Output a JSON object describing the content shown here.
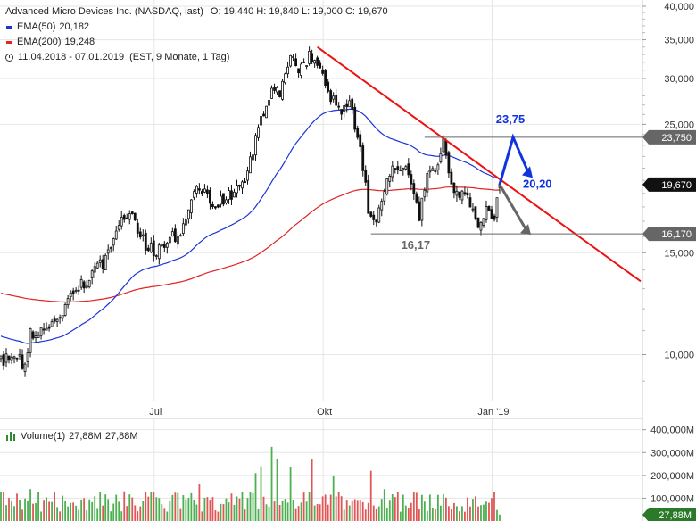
{
  "legend": {
    "name": "Advanced Micro Devices Inc. (NASDAQ, last)",
    "ohlc": "O: 19,440  H: 19,840  L: 19,000  C: 19,670",
    "ema50_label": "EMA(50)",
    "ema50_value": "20,182",
    "ema200_label": "EMA(200)",
    "ema200_value": "19,248",
    "range": "11.04.2018 - 07.01.2019",
    "range_meta": "(EST, 9 Monate, 1 Tag)",
    "volume_label": "Volume(1)",
    "volume_value1": "27,88M",
    "volume_value2": "27,88M"
  },
  "colors": {
    "ema50": "#1a36d6",
    "ema200": "#e02424",
    "trendline": "#ee1111",
    "up_candle": "#ffffff",
    "down_candle": "#111111",
    "volume_up": "#4caf50",
    "volume_down": "#e05555",
    "forecast_up": "#1133dd",
    "forecast_down": "#666666",
    "price_tag": "#111111",
    "level_tag": "#666666",
    "volume_tag": "#2a7a2a"
  },
  "chart_data": [
    {
      "type": "candlestick",
      "title": "Advanced Micro Devices Inc. (NASDAQ, last)",
      "y_scale": "log",
      "ylim": [
        8.3,
        41
      ],
      "y_ticks": [
        "40,000",
        "35,000",
        "30,000",
        "25,000",
        "15,000",
        "10,000"
      ],
      "y_tick_values": [
        40,
        35,
        30,
        25,
        15,
        10
      ],
      "x_ticks": [
        "Jul",
        "Okt",
        "Jan '19"
      ],
      "x_tick_dates": [
        "2018-07-02",
        "2018-10-01",
        "2019-01-02"
      ],
      "x_range": [
        "2018-04-11",
        "2019-01-07"
      ],
      "grid": true,
      "close_anchors": [
        {
          "date": "2018-04-11",
          "close": 9.8
        },
        {
          "date": "2018-04-20",
          "close": 9.9
        },
        {
          "date": "2018-04-24",
          "close": 9.4
        },
        {
          "date": "2018-04-26",
          "close": 10.9
        },
        {
          "date": "2018-05-03",
          "close": 11.0
        },
        {
          "date": "2018-05-10",
          "close": 11.4
        },
        {
          "date": "2018-05-18",
          "close": 12.9
        },
        {
          "date": "2018-05-25",
          "close": 13.4
        },
        {
          "date": "2018-06-06",
          "close": 14.6
        },
        {
          "date": "2018-06-14",
          "close": 16.9
        },
        {
          "date": "2018-06-20",
          "close": 17.3
        },
        {
          "date": "2018-06-27",
          "close": 15.5
        },
        {
          "date": "2018-07-03",
          "close": 15.0
        },
        {
          "date": "2018-07-11",
          "close": 16.1
        },
        {
          "date": "2018-07-17",
          "close": 15.9
        },
        {
          "date": "2018-07-25",
          "close": 19.9
        },
        {
          "date": "2018-08-02",
          "close": 18.2
        },
        {
          "date": "2018-08-10",
          "close": 18.8
        },
        {
          "date": "2018-08-16",
          "close": 19.5
        },
        {
          "date": "2018-08-20",
          "close": 19.9
        },
        {
          "date": "2018-08-23",
          "close": 22.6
        },
        {
          "date": "2018-08-29",
          "close": 26.2
        },
        {
          "date": "2018-09-04",
          "close": 29.0
        },
        {
          "date": "2018-09-07",
          "close": 28.0
        },
        {
          "date": "2018-09-13",
          "close": 32.7
        },
        {
          "date": "2018-09-18",
          "close": 30.7
        },
        {
          "date": "2018-09-24",
          "close": 32.9
        },
        {
          "date": "2018-09-28",
          "close": 30.9
        },
        {
          "date": "2018-10-04",
          "close": 28.0
        },
        {
          "date": "2018-10-10",
          "close": 26.2
        },
        {
          "date": "2018-10-15",
          "close": 27.0
        },
        {
          "date": "2018-10-19",
          "close": 23.0
        },
        {
          "date": "2018-10-24",
          "close": 17.9
        },
        {
          "date": "2018-10-29",
          "close": 16.9
        },
        {
          "date": "2018-11-02",
          "close": 20.2
        },
        {
          "date": "2018-11-08",
          "close": 21.3
        },
        {
          "date": "2018-11-14",
          "close": 20.5
        },
        {
          "date": "2018-11-20",
          "close": 17.4
        },
        {
          "date": "2018-11-26",
          "close": 20.5
        },
        {
          "date": "2018-11-30",
          "close": 21.3
        },
        {
          "date": "2018-12-04",
          "close": 23.2
        },
        {
          "date": "2018-12-10",
          "close": 19.6
        },
        {
          "date": "2018-12-14",
          "close": 19.0
        },
        {
          "date": "2018-12-19",
          "close": 18.3
        },
        {
          "date": "2018-12-24",
          "close": 16.6
        },
        {
          "date": "2018-12-28",
          "close": 17.8
        },
        {
          "date": "2019-01-03",
          "close": 17.0
        },
        {
          "date": "2019-01-07",
          "close": 19.67
        }
      ],
      "last_ohlc": {
        "date": "2019-01-07",
        "open": 19.44,
        "high": 19.84,
        "low": 19.0,
        "close": 19.67
      },
      "ema50_last": 20.182,
      "ema200_last": 19.248,
      "annotations": {
        "resistance": {
          "value": 23.75,
          "label": "23,750",
          "from": "2018-11-23"
        },
        "support": {
          "value": 16.17,
          "label": "16,170",
          "from": "2018-10-25"
        },
        "last_price_label": "19,670",
        "trendline": {
          "from": {
            "date": "2018-09-27",
            "value": 34.0
          },
          "to": {
            "date": "2019-01-07",
            "value": 20.1
          }
        },
        "forecast_up": {
          "label": "23,75",
          "peak": 23.75,
          "target_label": "20,20",
          "target": 20.2
        },
        "forecast_down": {
          "target": 16.17
        },
        "low_label": "16,17"
      }
    },
    {
      "type": "bar",
      "title": "Volume(1)",
      "y_ticks": [
        "400,000M",
        "300,000M",
        "200,000M",
        "100,000M"
      ],
      "y_tick_values": [
        400,
        300,
        200,
        100
      ],
      "ylim": [
        0,
        430
      ],
      "unit": "M",
      "last_value": 27.88,
      "last_label": "27,88M",
      "typical_range": [
        40,
        130
      ],
      "spikes": [
        {
          "date": "2018-04-26",
          "value": 140
        },
        {
          "date": "2018-06-15",
          "value": 130
        },
        {
          "date": "2018-07-26",
          "value": 160
        },
        {
          "date": "2018-08-24",
          "value": 210
        },
        {
          "date": "2018-08-28",
          "value": 240
        },
        {
          "date": "2018-09-04",
          "value": 325
        },
        {
          "date": "2018-09-06",
          "value": 270
        },
        {
          "date": "2018-09-13",
          "value": 235
        },
        {
          "date": "2018-09-25",
          "value": 270
        },
        {
          "date": "2018-10-05",
          "value": 200
        },
        {
          "date": "2018-10-25",
          "value": 220
        },
        {
          "date": "2018-11-01",
          "value": 140
        }
      ]
    }
  ]
}
